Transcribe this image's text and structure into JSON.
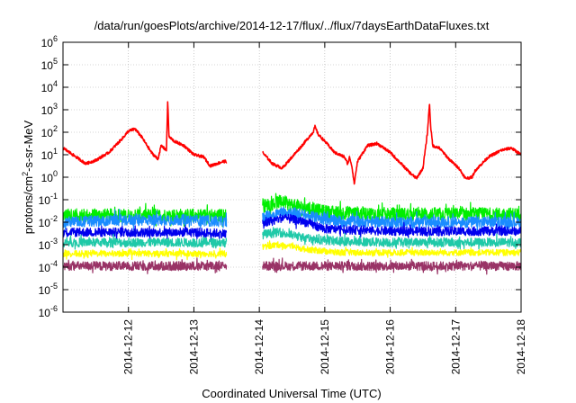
{
  "chart_data": {
    "type": "line",
    "title": "/data/run/goesPlots/archive/2014-12-17/flux/../flux/7daysEarthDataFluxes.txt",
    "xlabel": "Coordinated Universal Time (UTC)",
    "ylabel": {
      "base": "protons/cm",
      "sup": "2",
      "rest": "-s-sr-MeV"
    },
    "yscale": "log",
    "ylim": [
      1e-06,
      1000000.0
    ],
    "xlim": [
      0,
      7
    ],
    "grid": true,
    "legend": "none",
    "yticks": [
      {
        "value": -6,
        "base": "10",
        "exp": "-6"
      },
      {
        "value": -5,
        "base": "10",
        "exp": "-5"
      },
      {
        "value": -4,
        "base": "10",
        "exp": "-4"
      },
      {
        "value": -3,
        "base": "10",
        "exp": "-3"
      },
      {
        "value": -2,
        "base": "10",
        "exp": "-2"
      },
      {
        "value": -1,
        "base": "10",
        "exp": "-1"
      },
      {
        "value": 0,
        "base": "10",
        "exp": "0"
      },
      {
        "value": 1,
        "base": "10",
        "exp": "1"
      },
      {
        "value": 2,
        "base": "10",
        "exp": "2"
      },
      {
        "value": 3,
        "base": "10",
        "exp": "3"
      },
      {
        "value": 4,
        "base": "10",
        "exp": "4"
      },
      {
        "value": 5,
        "base": "10",
        "exp": "5"
      },
      {
        "value": 6,
        "base": "10",
        "exp": "6"
      }
    ],
    "xticks": [
      {
        "value": 1,
        "label": "2014-12-12"
      },
      {
        "value": 2,
        "label": "2014-12-13"
      },
      {
        "value": 3,
        "label": "2014-12-14"
      },
      {
        "value": 4,
        "label": "2014-12-15"
      },
      {
        "value": 5,
        "label": "2014-12-16"
      },
      {
        "value": 6,
        "label": "2014-12-17"
      },
      {
        "value": 7,
        "label": "2014-12-18"
      }
    ],
    "data_gap": [
      2.5,
      3.05
    ],
    "series": [
      {
        "color": "#ff0000",
        "width": 1.6,
        "noise": 0.06,
        "points": [
          [
            0,
            1.3
          ],
          [
            0.2,
            0.9
          ],
          [
            0.35,
            0.6
          ],
          [
            0.5,
            0.75
          ],
          [
            0.7,
            1.1
          ],
          [
            0.9,
            1.7
          ],
          [
            1.0,
            2.05
          ],
          [
            1.1,
            2.15
          ],
          [
            1.2,
            1.8
          ],
          [
            1.35,
            1.1
          ],
          [
            1.45,
            0.8
          ],
          [
            1.5,
            1.4
          ],
          [
            1.58,
            1.2
          ],
          [
            1.6,
            3.4
          ],
          [
            1.62,
            1.8
          ],
          [
            1.7,
            1.6
          ],
          [
            1.85,
            1.4
          ],
          [
            2.0,
            1.0
          ],
          [
            2.15,
            0.9
          ],
          [
            2.25,
            0.5
          ],
          [
            2.35,
            0.6
          ],
          [
            2.45,
            0.7
          ],
          [
            2.5,
            0.7
          ],
          [
            3.05,
            1.1
          ],
          [
            3.2,
            0.6
          ],
          [
            3.35,
            0.4
          ],
          [
            3.5,
            0.9
          ],
          [
            3.65,
            1.4
          ],
          [
            3.82,
            2.0
          ],
          [
            3.85,
            2.25
          ],
          [
            3.9,
            1.9
          ],
          [
            4.0,
            1.6
          ],
          [
            4.15,
            1.1
          ],
          [
            4.3,
            0.9
          ],
          [
            4.35,
            0.6
          ],
          [
            4.38,
            0.9
          ],
          [
            4.42,
            0.4
          ],
          [
            4.45,
            -0.3
          ],
          [
            4.5,
            0.7
          ],
          [
            4.65,
            1.4
          ],
          [
            4.8,
            1.5
          ],
          [
            5.0,
            1.1
          ],
          [
            5.2,
            0.5
          ],
          [
            5.3,
            0.2
          ],
          [
            5.4,
            -0.05
          ],
          [
            5.5,
            0.4
          ],
          [
            5.57,
            2.0
          ],
          [
            5.6,
            3.3
          ],
          [
            5.62,
            2.2
          ],
          [
            5.65,
            1.4
          ],
          [
            5.75,
            1.3
          ],
          [
            5.9,
            0.8
          ],
          [
            6.05,
            0.4
          ],
          [
            6.15,
            -0.05
          ],
          [
            6.25,
            0.0
          ],
          [
            6.3,
            0.3
          ],
          [
            6.5,
            0.9
          ],
          [
            6.7,
            1.2
          ],
          [
            6.85,
            1.3
          ],
          [
            7.0,
            1.0
          ]
        ]
      },
      {
        "color": "#00ee00",
        "width": 1.2,
        "noise": 0.3,
        "points": [
          [
            0,
            -1.7
          ],
          [
            1.0,
            -1.7
          ],
          [
            2.0,
            -1.7
          ],
          [
            2.5,
            -1.7
          ],
          [
            3.05,
            -1.3
          ],
          [
            3.3,
            -1.1
          ],
          [
            3.6,
            -1.3
          ],
          [
            4.0,
            -1.55
          ],
          [
            5.0,
            -1.65
          ],
          [
            6.0,
            -1.65
          ],
          [
            7.0,
            -1.65
          ]
        ]
      },
      {
        "color": "#1a8cff",
        "width": 1.2,
        "noise": 0.25,
        "points": [
          [
            0,
            -2.0
          ],
          [
            1.0,
            -1.9
          ],
          [
            2.0,
            -1.9
          ],
          [
            2.5,
            -2.0
          ],
          [
            3.05,
            -1.8
          ],
          [
            3.4,
            -1.5
          ],
          [
            3.8,
            -1.75
          ],
          [
            4.2,
            -1.95
          ],
          [
            5.0,
            -2.0
          ],
          [
            6.0,
            -2.0
          ],
          [
            7.0,
            -2.0
          ]
        ]
      },
      {
        "color": "#0000ee",
        "width": 1.2,
        "noise": 0.2,
        "points": [
          [
            0,
            -2.45
          ],
          [
            1.0,
            -2.45
          ],
          [
            2.0,
            -2.45
          ],
          [
            2.5,
            -2.5
          ],
          [
            3.05,
            -2.1
          ],
          [
            3.35,
            -1.8
          ],
          [
            3.7,
            -2.0
          ],
          [
            4.0,
            -2.3
          ],
          [
            5.0,
            -2.4
          ],
          [
            6.0,
            -2.4
          ],
          [
            7.0,
            -2.4
          ]
        ]
      },
      {
        "color": "#1fc9a8",
        "width": 1.2,
        "noise": 0.2,
        "points": [
          [
            0,
            -2.9
          ],
          [
            1.0,
            -2.9
          ],
          [
            2.0,
            -2.9
          ],
          [
            2.5,
            -2.9
          ],
          [
            3.05,
            -2.55
          ],
          [
            3.3,
            -2.45
          ],
          [
            3.7,
            -2.7
          ],
          [
            4.2,
            -2.85
          ],
          [
            5.0,
            -2.9
          ],
          [
            6.0,
            -2.9
          ],
          [
            7.0,
            -2.9
          ]
        ]
      },
      {
        "color": "#ffff00",
        "width": 1.2,
        "noise": 0.14,
        "points": [
          [
            0,
            -3.4
          ],
          [
            1.0,
            -3.4
          ],
          [
            2.0,
            -3.4
          ],
          [
            2.5,
            -3.4
          ],
          [
            3.05,
            -3.1
          ],
          [
            3.3,
            -3.0
          ],
          [
            3.7,
            -3.2
          ],
          [
            4.2,
            -3.35
          ],
          [
            5.0,
            -3.35
          ],
          [
            6.0,
            -3.35
          ],
          [
            7.0,
            -3.35
          ]
        ]
      },
      {
        "color": "#993366",
        "width": 1.2,
        "noise": 0.2,
        "points": [
          [
            0,
            -3.95
          ],
          [
            1.0,
            -3.95
          ],
          [
            2.0,
            -3.95
          ],
          [
            2.5,
            -3.95
          ],
          [
            3.05,
            -3.95
          ],
          [
            4.0,
            -3.95
          ],
          [
            5.0,
            -3.95
          ],
          [
            6.0,
            -3.95
          ],
          [
            7.0,
            -3.95
          ]
        ]
      }
    ]
  }
}
